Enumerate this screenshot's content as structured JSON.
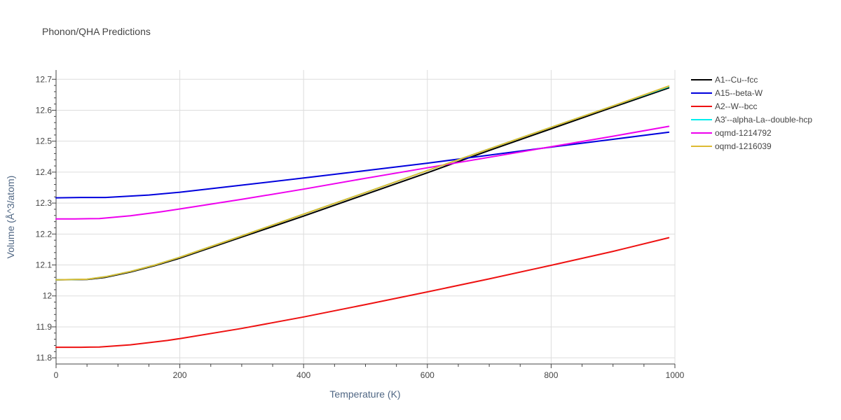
{
  "chart_data": {
    "type": "line",
    "title": "Phonon/QHA Predictions",
    "xlabel": "Temperature (K)",
    "ylabel": "Volume (Å^3/atom)",
    "xlim": [
      0,
      1000
    ],
    "ylim": [
      11.78,
      12.73
    ],
    "x_ticks": [
      "0",
      "200",
      "400",
      "600",
      "800",
      "1000"
    ],
    "y_ticks": [
      "11.8",
      "11.9",
      "12",
      "12.1",
      "12.2",
      "12.3",
      "12.4",
      "12.5",
      "12.6",
      "12.7"
    ],
    "grid": true,
    "legend_position": "right",
    "series": [
      {
        "name": "A1--Cu--fcc",
        "color": "#000000",
        "x": [
          0,
          50,
          80,
          120,
          160,
          200,
          300,
          400,
          500,
          600,
          700,
          800,
          900,
          990
        ],
        "y": [
          12.052,
          12.053,
          12.06,
          12.077,
          12.098,
          12.122,
          12.19,
          12.258,
          12.328,
          12.398,
          12.47,
          12.54,
          12.61,
          12.672
        ]
      },
      {
        "name": "A15--beta-W",
        "color": "#0000dd",
        "x": [
          0,
          40,
          80,
          150,
          200,
          300,
          400,
          500,
          600,
          700,
          800,
          900,
          990
        ],
        "y": [
          12.317,
          12.318,
          12.318,
          12.326,
          12.335,
          12.358,
          12.381,
          12.405,
          12.429,
          12.455,
          12.481,
          12.506,
          12.529
        ]
      },
      {
        "name": "A2--W--bcc",
        "color": "#ee1111",
        "x": [
          0,
          40,
          70,
          120,
          180,
          200,
          300,
          400,
          500,
          600,
          700,
          800,
          900,
          990
        ],
        "y": [
          11.834,
          11.834,
          11.835,
          11.842,
          11.856,
          11.862,
          11.895,
          11.932,
          11.972,
          12.013,
          12.055,
          12.099,
          12.144,
          12.188
        ]
      },
      {
        "name": "A3'--alpha-La--double-hcp",
        "color": "#00eeee",
        "x": [
          0,
          50,
          80,
          120,
          160,
          200,
          300,
          400,
          500,
          600,
          700,
          800,
          900,
          990
        ],
        "y": [
          12.052,
          12.054,
          12.062,
          12.079,
          12.1,
          12.125,
          12.194,
          12.264,
          12.334,
          12.405,
          12.475,
          12.545,
          12.614,
          12.676
        ]
      },
      {
        "name": "oqmd-1214792",
        "color": "#ee00ee",
        "x": [
          0,
          30,
          70,
          120,
          170,
          200,
          300,
          400,
          500,
          600,
          700,
          800,
          900,
          990
        ],
        "y": [
          12.249,
          12.249,
          12.25,
          12.259,
          12.272,
          12.281,
          12.312,
          12.345,
          12.38,
          12.414,
          12.448,
          12.482,
          12.516,
          12.548
        ]
      },
      {
        "name": "oqmd-1216039",
        "color": "#ddbb33",
        "x": [
          0,
          50,
          80,
          120,
          160,
          200,
          300,
          400,
          500,
          600,
          700,
          800,
          900,
          990
        ],
        "y": [
          12.052,
          12.054,
          12.062,
          12.079,
          12.1,
          12.125,
          12.194,
          12.264,
          12.334,
          12.405,
          12.475,
          12.545,
          12.614,
          12.678
        ]
      }
    ]
  }
}
